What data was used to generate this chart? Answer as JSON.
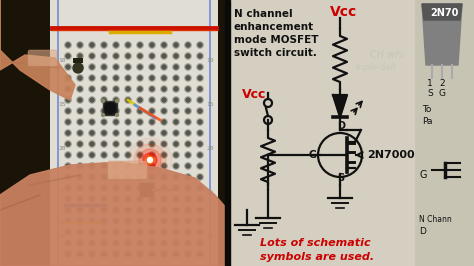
{
  "bg_color": "#111111",
  "breadboard_bg": "#d8d0c0",
  "breadboard_body": "#cccccc",
  "hole_color": "#888880",
  "hole_dark": "#555550",
  "red_wire": "#cc1100",
  "blue_wire": "#3355cc",
  "skin_light": "#d4956c",
  "skin_dark": "#c07850",
  "button_color": "#222222",
  "button_cap": "#1a1a1a",
  "led_red": "#ff2200",
  "mosfet_cyl": "#222222",
  "right_bg": "#ccc8b8",
  "sc": "#111111",
  "text_red": "#cc0000",
  "title_lines": [
    "N channel",
    "enhancement",
    "mode MOSFET",
    "switch circuit."
  ],
  "vcc_label": "Vcc",
  "mosfet_label": "2N7000",
  "bottom_line1": "Lots of schematic",
  "bottom_line2": "symbols are used.",
  "far_right_bg": "#bbbbaa",
  "comp_bg": "#888888",
  "comp_text": "2N70",
  "numbers": [
    "10",
    "15",
    "20",
    "25",
    "30"
  ]
}
